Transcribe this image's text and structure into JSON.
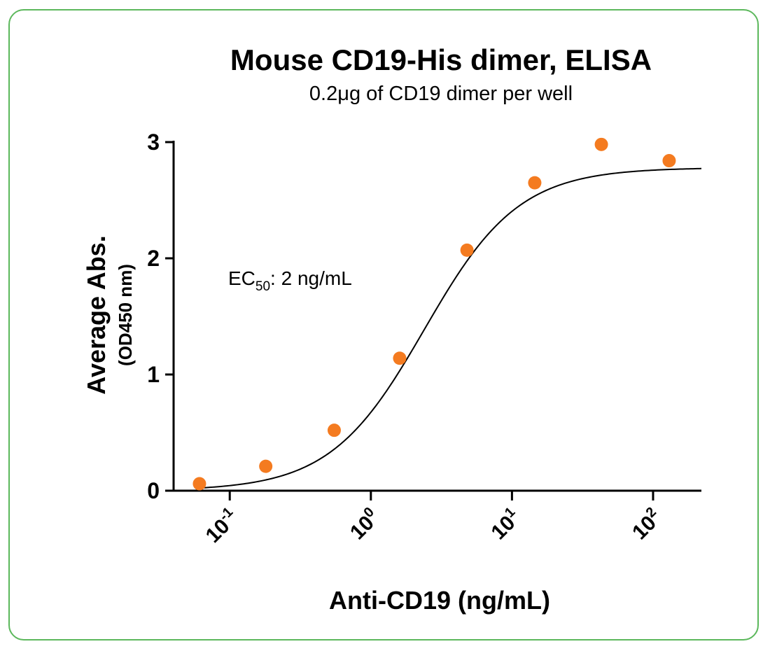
{
  "chart_data": {
    "type": "scatter",
    "title": "Mouse CD19-His dimer, ELISA",
    "subtitle": "0.2μg of CD19 dimer per well",
    "xlabel": "Anti-CD19 (ng/mL)",
    "ylabel": "Average Abs.",
    "ylabel_sub": "(OD450 nm)",
    "x_scale": "log",
    "xlim": [
      0.04,
      220
    ],
    "ylim": [
      0,
      3
    ],
    "x_ticks": [
      {
        "value": 0.1,
        "base": "10",
        "exp": "-1"
      },
      {
        "value": 1,
        "base": "10",
        "exp": "0"
      },
      {
        "value": 10,
        "base": "10",
        "exp": "1"
      },
      {
        "value": 100,
        "base": "10",
        "exp": "2"
      }
    ],
    "y_ticks": [
      0,
      1,
      2,
      3
    ],
    "series": [
      {
        "x": [
          0.061,
          0.18,
          0.55,
          1.6,
          4.8,
          14.5,
          43,
          130
        ],
        "y": [
          0.06,
          0.21,
          0.52,
          1.14,
          2.07,
          2.65,
          2.98,
          2.84
        ],
        "color": "#f47b20"
      }
    ],
    "fit_curve": {
      "bottom": 0.0,
      "top": 2.78,
      "ec50": 2.4,
      "hill": 1.3,
      "color": "#000000"
    },
    "annotation": {
      "prefix": "EC",
      "subscript": "50",
      "suffix": ": 2 ng/mL"
    },
    "grid": false,
    "legend": "none"
  },
  "colors": {
    "border": "#5cb85c",
    "points": "#f47b20",
    "curve": "#000000"
  }
}
